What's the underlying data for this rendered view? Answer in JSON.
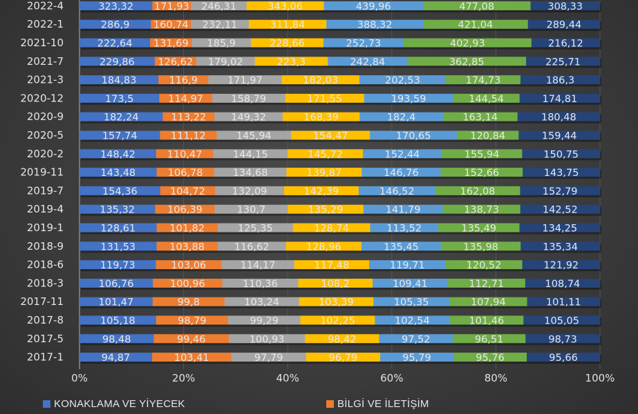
{
  "chart_data": {
    "type": "bar",
    "orientation": "horizontal",
    "stacking": "percent",
    "title": "",
    "xlabel": "",
    "ylabel": "",
    "xlim": [
      0,
      100
    ],
    "x_ticks": [
      "0%",
      "20%",
      "40%",
      "60%",
      "80%",
      "100%"
    ],
    "grid": true,
    "legend_position": "bottom",
    "categories": [
      "2022-4",
      "2022-1",
      "2021-10",
      "2021-7",
      "2021-3",
      "2020-12",
      "2020-9",
      "2020-5",
      "2020-2",
      "2019-11",
      "2019-7",
      "2019-4",
      "2019-1",
      "2018-9",
      "2018-6",
      "2018-3",
      "2017-11",
      "2017-8",
      "2017-5",
      "2017-1"
    ],
    "series": [
      {
        "name": "KONAKLAMA VE YİYECEK",
        "color": "#4472c4",
        "values": [
          323.32,
          286.9,
          222.64,
          229.86,
          184.83,
          173.5,
          182.24,
          157.74,
          148.42,
          143.48,
          154.36,
          135.32,
          128.61,
          131.53,
          119.73,
          106.76,
          101.47,
          105.18,
          98.48,
          94.87
        ],
        "labels": [
          "323,32",
          "286,9",
          "222,64",
          "229,86",
          "184,83",
          "173,5",
          "182,24",
          "157,74",
          "148,42",
          "143,48",
          "154,36",
          "135,32",
          "128,61",
          "131,53",
          "119,73",
          "106,76",
          "101,47",
          "105,18",
          "98,48",
          "94,87"
        ]
      },
      {
        "name": "BİLGİ VE İLETİŞİM",
        "color": "#ed7d31",
        "values": [
          171.93,
          160.74,
          131.69,
          126.62,
          116.9,
          114.97,
          113.22,
          111.12,
          110.47,
          106.78,
          104.72,
          106.39,
          101.82,
          103.88,
          103.06,
          100.96,
          99.8,
          98.79,
          99.46,
          103.41
        ],
        "labels": [
          "171,93",
          "160,74",
          "131,69",
          "126,62",
          "116,9",
          "114,97",
          "113,22",
          "111,12",
          "110,47",
          "106,78",
          "104,72",
          "106,39",
          "101,82",
          "103,88",
          "103,06",
          "100,96",
          "99,8",
          "98,79",
          "99,46",
          "103,41"
        ]
      },
      {
        "name": "",
        "color": "#a5a5a5",
        "values": [
          246.31,
          232.11,
          185.9,
          179.02,
          171.97,
          158.79,
          149.32,
          145.94,
          144.15,
          134.68,
          132.09,
          130.7,
          125.35,
          116.62,
          114.17,
          110.36,
          103.24,
          99.29,
          100.93,
          97.79
        ],
        "labels": [
          "246,31",
          "232,11",
          "185,9",
          "179,02",
          "171,97",
          "158,79",
          "149,32",
          "145,94",
          "144,15",
          "134,68",
          "132,09",
          "130,7",
          "125,35",
          "116,62",
          "114,17",
          "110,36",
          "103,24",
          "99,29",
          "100,93",
          "97,79"
        ]
      },
      {
        "name": "",
        "color": "#ffc000",
        "values": [
          343.06,
          311.84,
          228.66,
          223.3,
          182.03,
          171.55,
          168.39,
          154.47,
          145.72,
          139.87,
          142.39,
          135.29,
          128.74,
          128.96,
          117.48,
          108.2,
          103.39,
          102.25,
          98.42,
          96.79
        ],
        "labels": [
          "343,06",
          "311,84",
          "228,66",
          "223,3",
          "182,03",
          "171,55",
          "168,39",
          "154,47",
          "145,72",
          "139,87",
          "142,39",
          "135,29",
          "128,74",
          "128,96",
          "117,48",
          "108,2",
          "103,39",
          "102,25",
          "98,42",
          "96,79"
        ]
      },
      {
        "name": "",
        "color": "#5b9bd5",
        "values": [
          439.96,
          388.32,
          252.73,
          242.84,
          202.53,
          193.59,
          182.4,
          170.65,
          152.44,
          146.76,
          146.52,
          141.79,
          113.52,
          135.45,
          119.71,
          109.41,
          105.35,
          102.54,
          97.52,
          95.79
        ],
        "labels": [
          "439,96",
          "388,32",
          "252,73",
          "242,84",
          "202,53",
          "193,59",
          "182,4",
          "170,65",
          "152,44",
          "146,76",
          "146,52",
          "141,79",
          "113,52",
          "135,45",
          "119,71",
          "109,41",
          "105,35",
          "102,54",
          "97,52",
          "95,79"
        ]
      },
      {
        "name": "",
        "color": "#70ad47",
        "values": [
          477.08,
          421.04,
          402.93,
          362.85,
          174.73,
          144.54,
          163.14,
          120.84,
          155.94,
          152.66,
          162.08,
          138.73,
          135.49,
          135.98,
          120.52,
          112.71,
          107.94,
          101.46,
          96.51,
          95.76
        ],
        "labels": [
          "477,08",
          "421,04",
          "402,93",
          "362,85",
          "174,73",
          "144,54",
          "163,14",
          "120,84",
          "155,94",
          "152,66",
          "162,08",
          "138,73",
          "135,49",
          "135,98",
          "120,52",
          "112,71",
          "107,94",
          "101,46",
          "96,51",
          "95,76"
        ]
      },
      {
        "name": "",
        "color": "#264478",
        "values": [
          308.33,
          289.44,
          216.12,
          225.71,
          186.3,
          174.81,
          180.48,
          159.44,
          150.75,
          143.75,
          152.79,
          142.52,
          134.25,
          135.34,
          121.92,
          108.74,
          101.11,
          105.05,
          98.73,
          95.66
        ],
        "labels": [
          "308,33",
          "289,44",
          "216,12",
          "225,71",
          "186,3",
          "174,81",
          "180,48",
          "159,44",
          "150,75",
          "143,75",
          "152,79",
          "142,52",
          "134,25",
          "135,34",
          "121,92",
          "108,74",
          "101,11",
          "105,05",
          "98,73",
          "95,66"
        ]
      }
    ]
  },
  "legend": {
    "items": [
      {
        "label": "KONAKLAMA VE YİYECEK",
        "color": "#4472c4"
      },
      {
        "label": "BİLGİ VE İLETİŞİM",
        "color": "#ed7d31"
      }
    ]
  }
}
